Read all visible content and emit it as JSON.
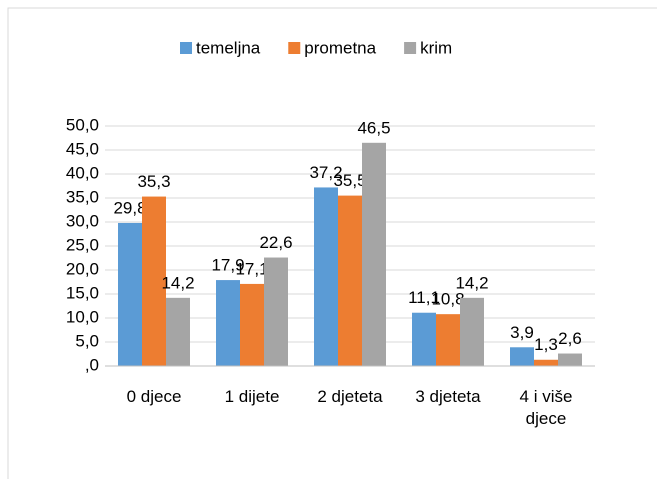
{
  "chart_data": {
    "type": "bar",
    "categories": [
      "0 djece",
      "1 dijete",
      "2 djeteta",
      "3 djeteta",
      "4 i više djece"
    ],
    "series": [
      {
        "name": "temeljna",
        "color": "#5b9bd5",
        "values": [
          29.8,
          17.9,
          37.2,
          11.1,
          3.9
        ],
        "value_labels": [
          "29,8",
          "17,9",
          "37,2",
          "11,1",
          "3,9"
        ]
      },
      {
        "name": "prometna",
        "color": "#ed7d31",
        "values": [
          35.3,
          17.1,
          35.5,
          10.8,
          1.3
        ],
        "value_labels": [
          "35,3",
          "17,1",
          "35,5",
          "10,8",
          "1,3"
        ]
      },
      {
        "name": "krim",
        "color": "#a5a5a5",
        "values": [
          14.2,
          22.6,
          46.5,
          14.2,
          2.6
        ],
        "value_labels": [
          "14,2",
          "22,6",
          "46,5",
          "14,2",
          "2,6"
        ]
      }
    ],
    "ylim": [
      0,
      50
    ],
    "yticks": [
      {
        "value": 0,
        "label": ",0"
      },
      {
        "value": 5,
        "label": "5,0"
      },
      {
        "value": 10,
        "label": "10,0"
      },
      {
        "value": 15,
        "label": "15,0"
      },
      {
        "value": 20,
        "label": "20,0"
      },
      {
        "value": 25,
        "label": "25,0"
      },
      {
        "value": 30,
        "label": "30,0"
      },
      {
        "value": 35,
        "label": "35,0"
      },
      {
        "value": 40,
        "label": "40,0"
      },
      {
        "value": 45,
        "label": "45,0"
      },
      {
        "value": 50,
        "label": "50,0"
      }
    ],
    "grid": true,
    "legend": "top"
  }
}
